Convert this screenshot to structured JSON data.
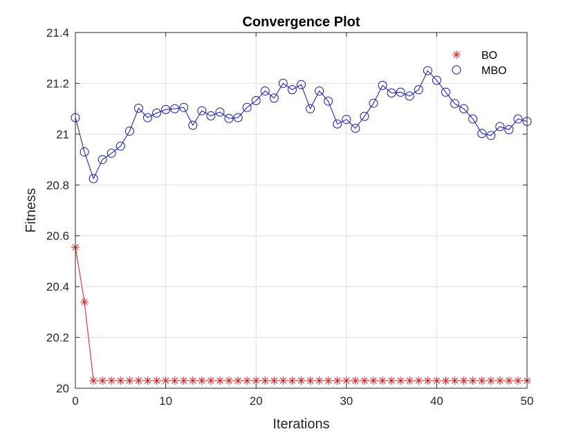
{
  "chart_data": {
    "type": "line",
    "title": "Convergence Plot",
    "xlabel": "Iterations",
    "ylabel": "Fitness",
    "xlim": [
      0,
      50
    ],
    "ylim": [
      20,
      21.4
    ],
    "xticks": [
      0,
      10,
      20,
      30,
      40,
      50
    ],
    "yticks": [
      20,
      20.2,
      20.4,
      20.6,
      20.8,
      21,
      21.2,
      21.4
    ],
    "ytick_labels": [
      "20",
      "20.2",
      "20.4",
      "20.6",
      "20.8",
      "21",
      "21.2",
      "21.4"
    ],
    "grid": true,
    "legend_position": "top-right",
    "series": [
      {
        "name": "BO",
        "color": "#e8161b",
        "marker": "asterisk",
        "x": [
          0,
          1,
          2,
          3,
          4,
          5,
          6,
          7,
          8,
          9,
          10,
          11,
          12,
          13,
          14,
          15,
          16,
          17,
          18,
          19,
          20,
          21,
          22,
          23,
          24,
          25,
          26,
          27,
          28,
          29,
          30,
          31,
          32,
          33,
          34,
          35,
          36,
          37,
          38,
          39,
          40,
          41,
          42,
          43,
          44,
          45,
          46,
          47,
          48,
          49,
          50
        ],
        "values": [
          20.555,
          20.34,
          20.03,
          20.03,
          20.03,
          20.03,
          20.03,
          20.03,
          20.03,
          20.03,
          20.03,
          20.03,
          20.03,
          20.03,
          20.03,
          20.03,
          20.03,
          20.03,
          20.03,
          20.03,
          20.03,
          20.03,
          20.03,
          20.03,
          20.03,
          20.03,
          20.03,
          20.03,
          20.03,
          20.03,
          20.03,
          20.03,
          20.03,
          20.03,
          20.03,
          20.03,
          20.03,
          20.03,
          20.03,
          20.03,
          20.03,
          20.03,
          20.03,
          20.03,
          20.03,
          20.03,
          20.03,
          20.03,
          20.03,
          20.03,
          20.03
        ]
      },
      {
        "name": "MBO",
        "color": "#1010d0",
        "marker": "circle",
        "x": [
          0,
          1,
          2,
          3,
          4,
          5,
          6,
          7,
          8,
          9,
          10,
          11,
          12,
          13,
          14,
          15,
          16,
          17,
          18,
          19,
          20,
          21,
          22,
          23,
          24,
          25,
          26,
          27,
          28,
          29,
          30,
          31,
          32,
          33,
          34,
          35,
          36,
          37,
          38,
          39,
          40,
          41,
          42,
          43,
          44,
          45,
          46,
          47,
          48,
          49,
          50
        ],
        "values": [
          21.065,
          20.93,
          20.825,
          20.9,
          20.925,
          20.953,
          21.012,
          21.102,
          21.065,
          21.083,
          21.097,
          21.1,
          21.105,
          21.035,
          21.092,
          21.072,
          21.087,
          21.062,
          21.065,
          21.105,
          21.132,
          21.17,
          21.142,
          21.2,
          21.175,
          21.195,
          21.1,
          21.17,
          21.13,
          21.04,
          21.058,
          21.023,
          21.07,
          21.122,
          21.192,
          21.162,
          21.165,
          21.15,
          21.175,
          21.25,
          21.212,
          21.165,
          21.12,
          21.1,
          21.06,
          21.003,
          20.995,
          21.03,
          21.018,
          21.06,
          21.05
        ]
      }
    ]
  }
}
